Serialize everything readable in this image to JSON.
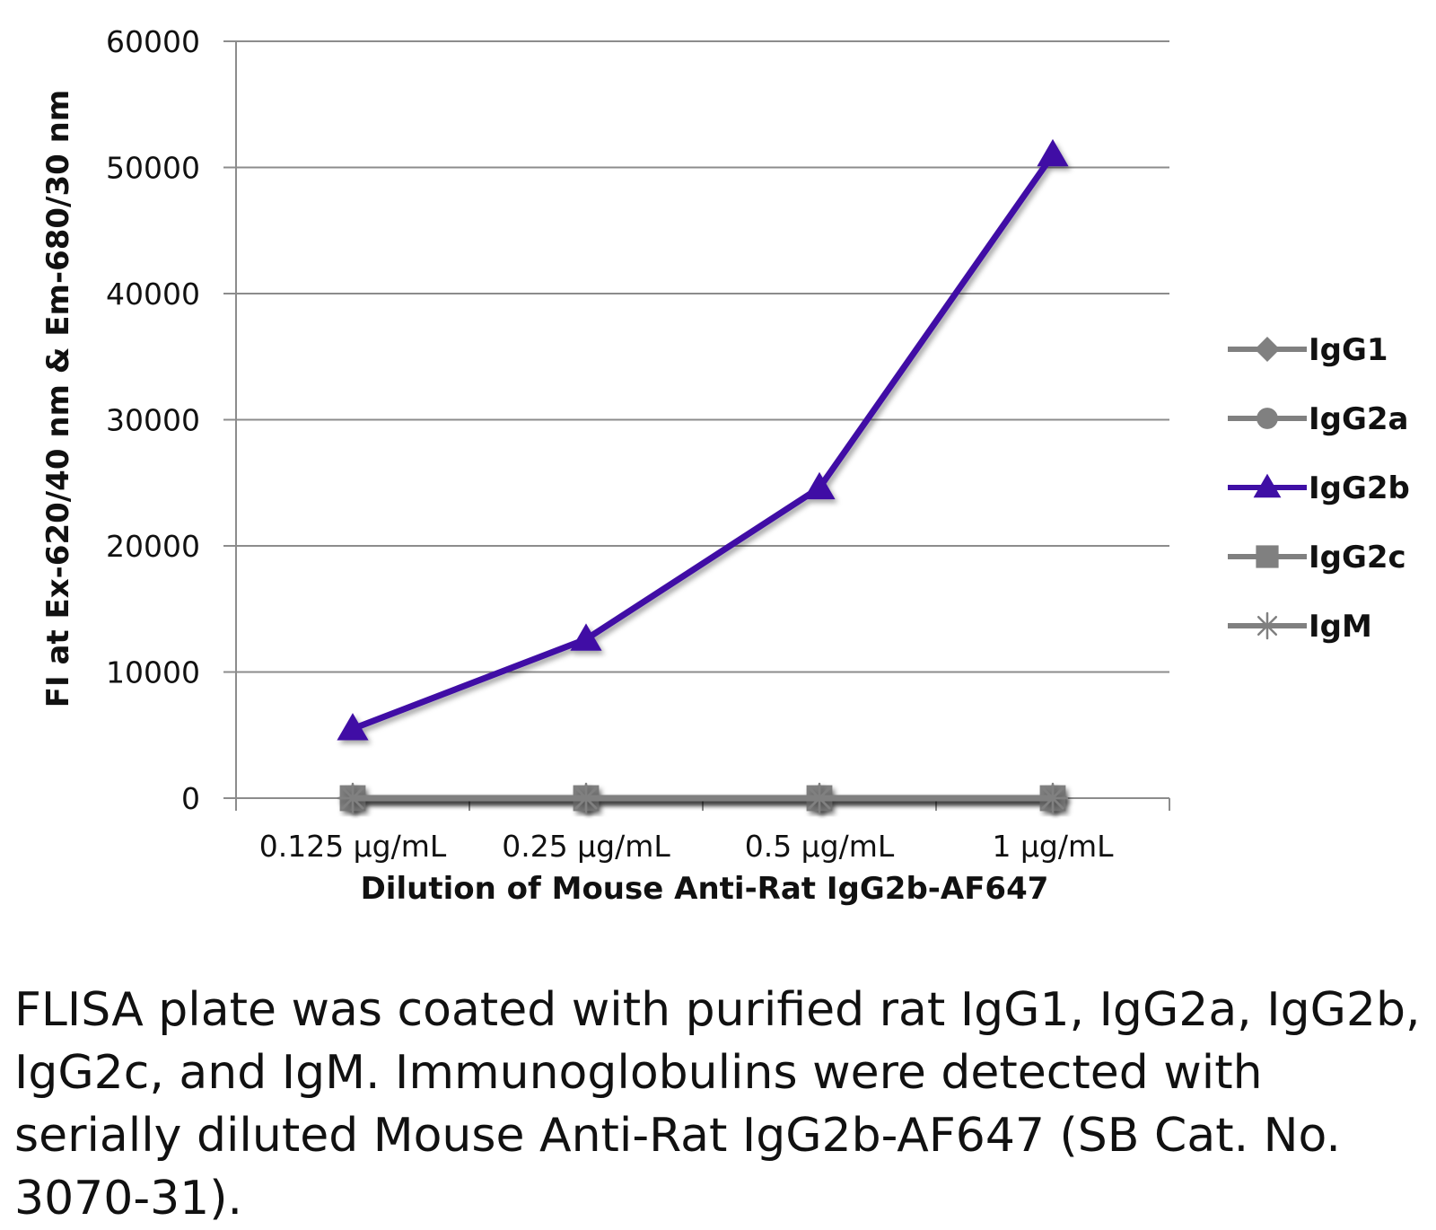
{
  "chart_data": {
    "type": "line",
    "categories": [
      "0.125 µg/mL",
      "0.25 µg/mL",
      "0.5 µg/mL",
      "1 µg/mL"
    ],
    "series": [
      {
        "name": "IgG1",
        "values": [
          0,
          0,
          0,
          0
        ],
        "color": "#808080",
        "marker": "diamond"
      },
      {
        "name": "IgG2a",
        "values": [
          0,
          0,
          0,
          0
        ],
        "color": "#808080",
        "marker": "circle"
      },
      {
        "name": "IgG2b",
        "values": [
          5500,
          12600,
          24600,
          51000
        ],
        "color": "#3f0fa5",
        "marker": "triangle"
      },
      {
        "name": "IgG2c",
        "values": [
          0,
          0,
          0,
          0
        ],
        "color": "#808080",
        "marker": "square"
      },
      {
        "name": "IgM",
        "values": [
          0,
          0,
          0,
          0
        ],
        "color": "#808080",
        "marker": "star"
      }
    ],
    "xlabel": "Dilution of Mouse Anti-Rat IgG2b-AF647",
    "ylabel": "FI at Ex-620/40 nm & Em-680/30 nm",
    "ylim": [
      0,
      60000
    ],
    "yticks": [
      0,
      10000,
      20000,
      30000,
      40000,
      50000,
      60000
    ],
    "grid": true,
    "legend": "right"
  },
  "caption": "FLISA plate was coated with purified rat IgG1, IgG2a, IgG2b, IgG2c, and IgM.  Immunoglobulins were detected with serially diluted Mouse Anti-Rat IgG2b-AF647 (SB Cat. No. 3070-31)."
}
